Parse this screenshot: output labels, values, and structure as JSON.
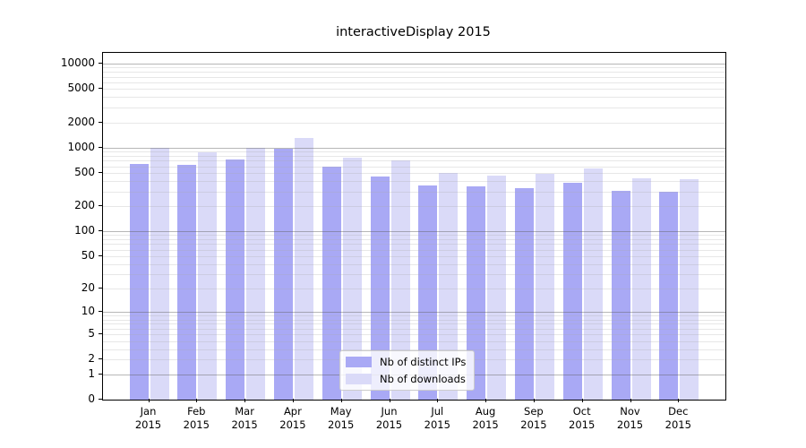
{
  "title": "interactiveDisplay 2015",
  "chart_data": {
    "type": "bar",
    "title": "interactiveDisplay 2015",
    "categories": [
      "Jan",
      "Feb",
      "Mar",
      "Apr",
      "May",
      "Jun",
      "Jul",
      "Aug",
      "Sep",
      "Oct",
      "Nov",
      "Dec"
    ],
    "category_year": "2015",
    "series": [
      {
        "name": "Nb of distinct IPs",
        "color": "#a9a9f5",
        "values": [
          640,
          620,
          720,
          970,
          590,
          450,
          350,
          345,
          330,
          380,
          305,
          295
        ]
      },
      {
        "name": "Nb of downloads",
        "color": "#dadaf8",
        "values": [
          1000,
          880,
          1000,
          1300,
          760,
          700,
          500,
          460,
          490,
          565,
          430,
          420
        ]
      }
    ],
    "yscale": "log10(value+1)",
    "ylim": [
      0,
      13400
    ],
    "ytick_labels": [
      "10000",
      "5000",
      "2000",
      "1000",
      "500",
      "200",
      "100",
      "50",
      "20",
      "10",
      "5",
      "2",
      "1",
      "0"
    ],
    "grid": {
      "major_lines_at": [
        1,
        10,
        100,
        1000,
        10000
      ],
      "minor_line_decades": [
        1,
        10,
        100,
        1000
      ],
      "minor_multiples": [
        2,
        3,
        4,
        5,
        6,
        7,
        8,
        9
      ]
    },
    "legend": {
      "position": "inside-bottom-center",
      "items": [
        "Nb of distinct IPs",
        "Nb of downloads"
      ]
    }
  }
}
